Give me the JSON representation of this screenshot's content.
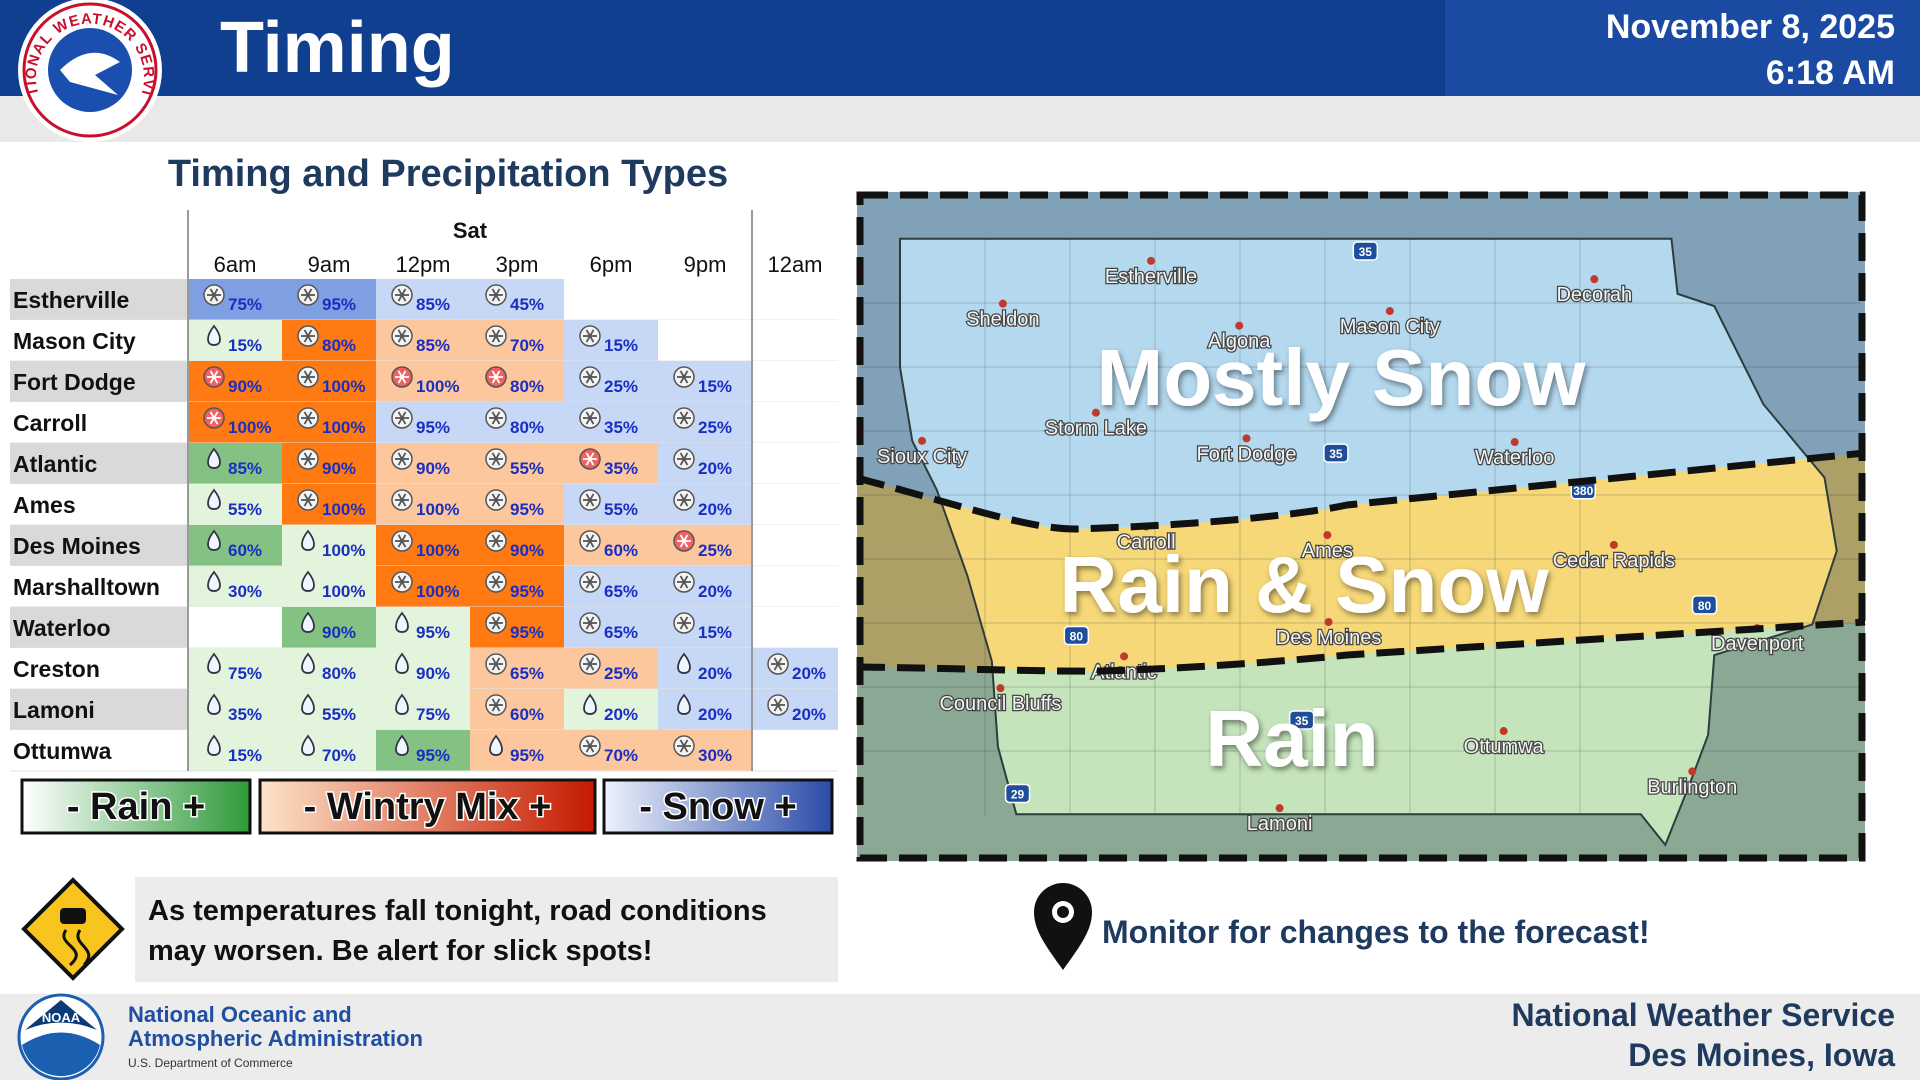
{
  "header": {
    "logo_text": "NATIONAL WEATHER SERVICE",
    "title": "Timing",
    "date": "November 8, 2025",
    "time": "6:18 AM"
  },
  "table": {
    "title": "Timing and Precipitation Types",
    "day": "Sat",
    "columns": [
      "6am",
      "9am",
      "12pm",
      "3pm",
      "6pm",
      "9pm",
      "12am"
    ],
    "rows": [
      {
        "city": "Estherville",
        "cells": [
          {
            "icon": "snow",
            "color": "#7f9fe3",
            "text": "75%"
          },
          {
            "icon": "snow",
            "color": "#7f9fe3",
            "text": "95%"
          },
          {
            "icon": "snow",
            "color": "#c6d8f6",
            "text": "85%"
          },
          {
            "icon": "snow",
            "color": "#c6d8f6",
            "text": "45%"
          },
          null,
          null,
          null
        ]
      },
      {
        "city": "Mason City",
        "cells": [
          {
            "icon": "rain",
            "color": "#e2f4dc",
            "text": "15%"
          },
          {
            "icon": "snow",
            "color": "#ff7a12",
            "text": "80%"
          },
          {
            "icon": "snow",
            "color": "#fcc79d",
            "text": "85%"
          },
          {
            "icon": "snow",
            "color": "#fcc79d",
            "text": "70%"
          },
          {
            "icon": "snow",
            "color": "#c6d8f6",
            "text": "15%"
          },
          null,
          null
        ]
      },
      {
        "city": "Fort Dodge",
        "cells": [
          {
            "icon": "mix",
            "color": "#ff7a12",
            "text": "90%"
          },
          {
            "icon": "snow",
            "color": "#ff7a12",
            "text": "100%"
          },
          {
            "icon": "mix",
            "color": "#fcc79d",
            "text": "100%"
          },
          {
            "icon": "mix",
            "color": "#fcc79d",
            "text": "80%"
          },
          {
            "icon": "snow",
            "color": "#c6d8f6",
            "text": "25%"
          },
          {
            "icon": "snow",
            "color": "#c6d8f6",
            "text": "15%"
          },
          null
        ]
      },
      {
        "city": "Carroll",
        "cells": [
          {
            "icon": "mix",
            "color": "#ff7a12",
            "text": "100%"
          },
          {
            "icon": "snow",
            "color": "#ff7a12",
            "text": "100%"
          },
          {
            "icon": "snow",
            "color": "#c6d8f6",
            "text": "95%"
          },
          {
            "icon": "snow",
            "color": "#c6d8f6",
            "text": "80%"
          },
          {
            "icon": "snow",
            "color": "#c6d8f6",
            "text": "35%"
          },
          {
            "icon": "snow",
            "color": "#c6d8f6",
            "text": "25%"
          },
          null
        ]
      },
      {
        "city": "Atlantic",
        "cells": [
          {
            "icon": "rain",
            "color": "#84c284",
            "text": "85%"
          },
          {
            "icon": "snow",
            "color": "#ff7a12",
            "text": "90%"
          },
          {
            "icon": "snow",
            "color": "#fcc79d",
            "text": "90%"
          },
          {
            "icon": "snow",
            "color": "#fcc79d",
            "text": "55%"
          },
          {
            "icon": "mix",
            "color": "#fcc79d",
            "text": "35%"
          },
          {
            "icon": "snow",
            "color": "#c6d8f6",
            "text": "20%"
          },
          null
        ]
      },
      {
        "city": "Ames",
        "cells": [
          {
            "icon": "rain",
            "color": "#e2f4dc",
            "text": "55%"
          },
          {
            "icon": "snow",
            "color": "#ff7a12",
            "text": "100%"
          },
          {
            "icon": "snow",
            "color": "#fcc79d",
            "text": "100%"
          },
          {
            "icon": "snow",
            "color": "#fcc79d",
            "text": "95%"
          },
          {
            "icon": "snow",
            "color": "#c6d8f6",
            "text": "55%"
          },
          {
            "icon": "snow",
            "color": "#c6d8f6",
            "text": "20%"
          },
          null
        ]
      },
      {
        "city": "Des Moines",
        "cells": [
          {
            "icon": "rain",
            "color": "#84c284",
            "text": "60%"
          },
          {
            "icon": "rain",
            "color": "#e2f4dc",
            "text": "100%"
          },
          {
            "icon": "snow",
            "color": "#ff7a12",
            "text": "100%"
          },
          {
            "icon": "snow",
            "color": "#ff7a12",
            "text": "90%"
          },
          {
            "icon": "snow",
            "color": "#fcc79d",
            "text": "60%"
          },
          {
            "icon": "mix",
            "color": "#fcc79d",
            "text": "25%"
          },
          null
        ]
      },
      {
        "city": "Marshalltown",
        "cells": [
          {
            "icon": "rain",
            "color": "#e2f4dc",
            "text": "30%"
          },
          {
            "icon": "rain",
            "color": "#e2f4dc",
            "text": "100%"
          },
          {
            "icon": "snow",
            "color": "#ff7a12",
            "text": "100%"
          },
          {
            "icon": "snow",
            "color": "#ff7a12",
            "text": "95%"
          },
          {
            "icon": "snow",
            "color": "#c6d8f6",
            "text": "65%"
          },
          {
            "icon": "snow",
            "color": "#c6d8f6",
            "text": "20%"
          },
          null
        ]
      },
      {
        "city": "Waterloo",
        "cells": [
          null,
          {
            "icon": "rain",
            "color": "#84c284",
            "text": "90%"
          },
          {
            "icon": "rain",
            "color": "#e2f4dc",
            "text": "95%"
          },
          {
            "icon": "snow",
            "color": "#ff7a12",
            "text": "95%"
          },
          {
            "icon": "snow",
            "color": "#c6d8f6",
            "text": "65%"
          },
          {
            "icon": "snow",
            "color": "#c6d8f6",
            "text": "15%"
          },
          null
        ]
      },
      {
        "city": "Creston",
        "cells": [
          {
            "icon": "rain",
            "color": "#e2f4dc",
            "text": "75%"
          },
          {
            "icon": "rain",
            "color": "#e2f4dc",
            "text": "80%"
          },
          {
            "icon": "rain",
            "color": "#e2f4dc",
            "text": "90%"
          },
          {
            "icon": "snow",
            "color": "#fcc79d",
            "text": "65%"
          },
          {
            "icon": "snow",
            "color": "#fcc79d",
            "text": "25%"
          },
          {
            "icon": "rain",
            "color": "#c6d8f6",
            "text": "20%"
          },
          {
            "icon": "snow",
            "color": "#c6d8f6",
            "text": "20%"
          }
        ]
      },
      {
        "city": "Lamoni",
        "cells": [
          {
            "icon": "rain",
            "color": "#e2f4dc",
            "text": "35%"
          },
          {
            "icon": "rain",
            "color": "#e2f4dc",
            "text": "55%"
          },
          {
            "icon": "rain",
            "color": "#e2f4dc",
            "text": "75%"
          },
          {
            "icon": "snow",
            "color": "#fcc79d",
            "text": "60%"
          },
          {
            "icon": "rain",
            "color": "#e2f4dc",
            "text": "20%"
          },
          {
            "icon": "rain",
            "color": "#c6d8f6",
            "text": "20%"
          },
          {
            "icon": "snow",
            "color": "#c6d8f6",
            "text": "20%"
          }
        ]
      },
      {
        "city": "Ottumwa",
        "cells": [
          {
            "icon": "rain",
            "color": "#e2f4dc",
            "text": "15%"
          },
          {
            "icon": "rain",
            "color": "#e2f4dc",
            "text": "70%"
          },
          {
            "icon": "rain",
            "color": "#84c284",
            "text": "95%"
          },
          {
            "icon": "rain",
            "color": "#fcc79d",
            "text": "95%"
          },
          {
            "icon": "snow",
            "color": "#fcc79d",
            "text": "70%"
          },
          {
            "icon": "snow",
            "color": "#fcc79d",
            "text": "30%"
          },
          null
        ]
      }
    ]
  },
  "legend": [
    {
      "label": "- Rain +",
      "colors": [
        "#ffffff",
        "#2e9a3a"
      ]
    },
    {
      "label": "- Wintry Mix +",
      "colors": [
        "#fde3c8",
        "#c41a00"
      ]
    },
    {
      "label": "- Snow +",
      "colors": [
        "#eef2fd",
        "#2a4ba8"
      ]
    }
  ],
  "message": [
    "As temperatures fall tonight, road conditions",
    "may worsen. Be alert for slick spots!"
  ],
  "map": {
    "zones": [
      "Mostly Snow",
      "Rain & Snow",
      "Rain"
    ],
    "cities": [
      "Estherville",
      "Decorah",
      "Sheldon",
      "Algona",
      "Mason City",
      "Storm Lake",
      "Sioux City",
      "Fort Dodge",
      "Waterloo",
      "Carroll",
      "Ames",
      "Cedar Rapids",
      "Des Moines",
      "Davenport",
      "Atlantic",
      "Council Bluffs",
      "Ottumwa",
      "Burlington",
      "Lamoni"
    ],
    "highways": [
      "35",
      "35",
      "380",
      "80",
      "80",
      "35",
      "29"
    ]
  },
  "monitor": "Monitor for changes to the forecast!",
  "footer": {
    "noaa_logo": "NOAA",
    "agency": [
      "National Oceanic and",
      "Atmospheric Administration"
    ],
    "department": "U.S. Department of Commerce",
    "office": [
      "National Weather Service",
      "Des Moines, Iowa"
    ]
  }
}
